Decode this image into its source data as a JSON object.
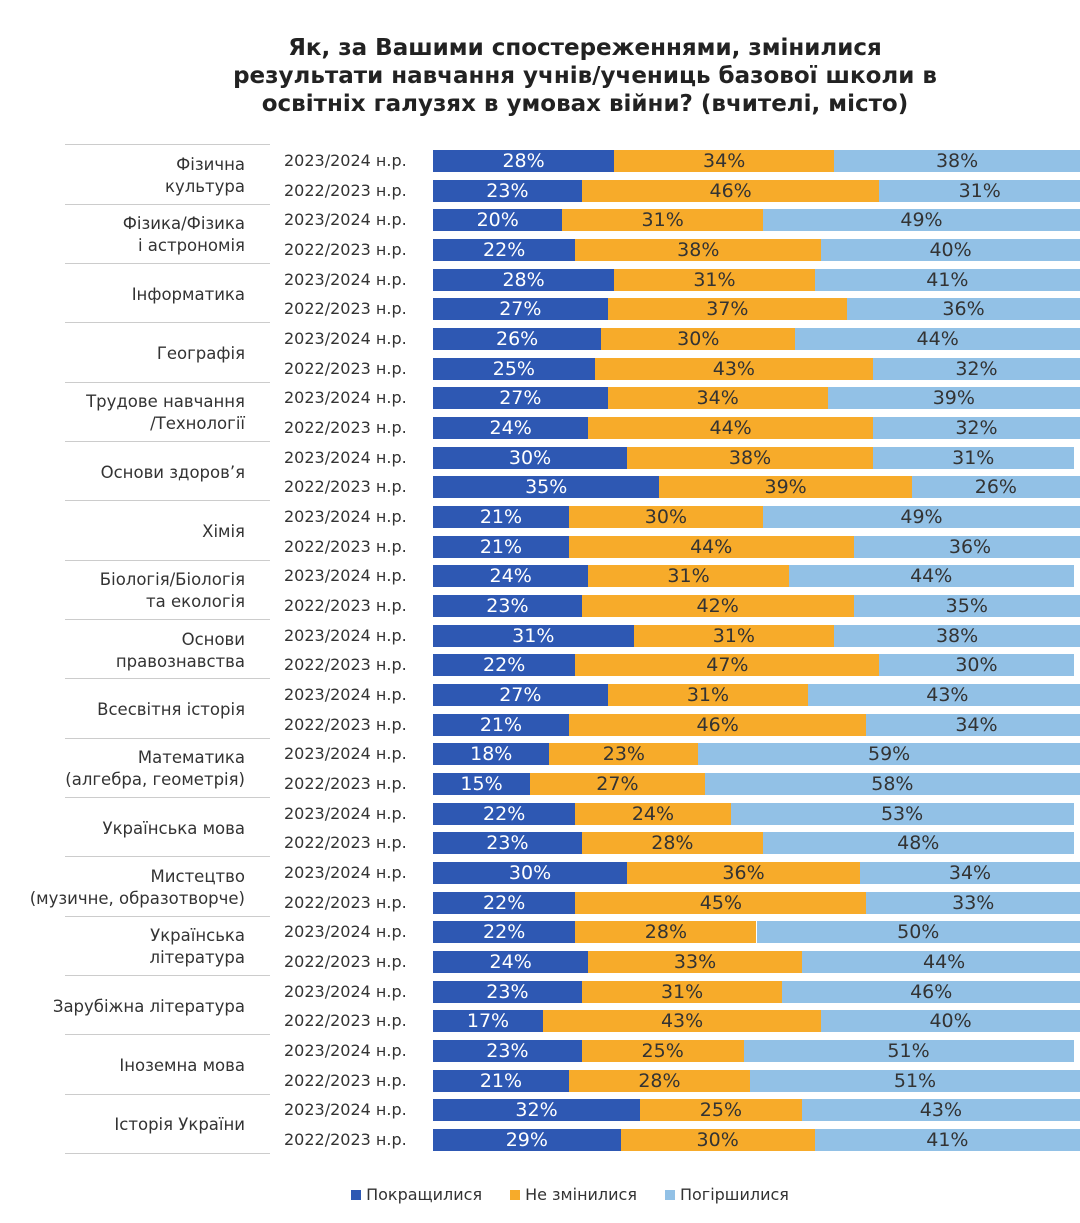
{
  "chart_data": {
    "type": "stacked-bar",
    "title": "Як, за Вашими спостереженнями, змінилися\nрезультати навчання учнів/учениць базової школи в\nосвітніх галузях в умовах війни? (вчителі, місто)",
    "groups": [
      "Фізична\nкультура",
      "Фізика/Фізика\nі астрономія",
      "Інформатика",
      "Географія",
      "Трудове навчання\n/Технології",
      "Основи здоров’я",
      "Хімія",
      "Біологія/Біологія\nта екологія",
      "Основи\nправознавства",
      "Всесвітня історія",
      "Математика\n(алгебра, геометрія)",
      "Українська мова",
      "Мистецтво\n(музичне, образотворче)",
      "Українська\nлітература",
      "Зарубіжна література",
      "Іноземна мова",
      "Історія України"
    ],
    "categories": [
      "2023/2024 н.р.",
      "2022/2023 н.р.",
      "2023/2024 н.р.",
      "2022/2023 н.р.",
      "2023/2024 н.р.",
      "2022/2023 н.р.",
      "2023/2024 н.р.",
      "2022/2023 н.р.",
      "2023/2024 н.р.",
      "2022/2023 н.р.",
      "2023/2024 н.р.",
      "2022/2023 н.р.",
      "2023/2024 н.р.",
      "2022/2023 н.р.",
      "2023/2024 н.р.",
      "2022/2023 н.р.",
      "2023/2024 н.р.",
      "2022/2023 н.р.",
      "2023/2024 н.р.",
      "2022/2023 н.р.",
      "2023/2024 н.р.",
      "2022/2023 н.р.",
      "2023/2024 н.р.",
      "2022/2023 н.р.",
      "2023/2024 н.р.",
      "2022/2023 н.р.",
      "2023/2024 н.р.",
      "2022/2023 н.р.",
      "2023/2024 н.р.",
      "2022/2023 н.р.",
      "2023/2024 н.р.",
      "2022/2023 н.р.",
      "2023/2024 н.р.",
      "2022/2023 н.р."
    ],
    "xlim": [
      0,
      100
    ],
    "series": [
      {
        "name": "Покращилися",
        "color": "#2e58b3",
        "values": [
          28,
          23,
          20,
          22,
          28,
          27,
          26,
          25,
          27,
          24,
          30,
          35,
          21,
          21,
          24,
          23,
          31,
          22,
          27,
          21,
          18,
          15,
          22,
          23,
          30,
          22,
          22,
          24,
          23,
          17,
          23,
          21,
          32,
          29
        ],
        "value_labels": [
          "28%",
          "23%",
          "20%",
          "22%",
          "28%",
          "27%",
          "26%",
          "25%",
          "27%",
          "24%",
          "30%",
          "35%",
          "21%",
          "21%",
          "24%",
          "23%",
          "31%",
          "22%",
          "27%",
          "21%",
          "18%",
          "15%",
          "22%",
          "23%",
          "30%",
          "22%",
          "22%",
          "24%",
          "23%",
          "17%",
          "23%",
          "21%",
          "32%",
          "29%"
        ]
      },
      {
        "name": "Не змінилися",
        "color": "#f7ab2a",
        "values": [
          34,
          46,
          31,
          38,
          31,
          37,
          30,
          43,
          34,
          44,
          38,
          39,
          30,
          44,
          31,
          42,
          31,
          47,
          31,
          46,
          23,
          27,
          24,
          28,
          36,
          45,
          28,
          33,
          31,
          43,
          25,
          28,
          25,
          30
        ],
        "value_labels": [
          "34%",
          "46%",
          "31%",
          "38%",
          "31%",
          "37%",
          "30%",
          "43%",
          "34%",
          "44%",
          "38%",
          "39%",
          "30%",
          "44%",
          "31%",
          "42%",
          "31%",
          "47%",
          "31%",
          "46%",
          "23%",
          "27%",
          "24%",
          "28%",
          "36%",
          "45%",
          "28%",
          "33%",
          "31%",
          "43%",
          "25%",
          "28%",
          "25%",
          "30%"
        ]
      },
      {
        "name": "Погіршилися",
        "color": "#92c1e6",
        "values": [
          38,
          31,
          49,
          40,
          41,
          36,
          44,
          32,
          39,
          32,
          31,
          26,
          49,
          36,
          44,
          35,
          38,
          30,
          43,
          34,
          59,
          58,
          53,
          48,
          34,
          33,
          50,
          44,
          46,
          40,
          51,
          51,
          43,
          41
        ],
        "value_labels": [
          "38%",
          "31%",
          "49%",
          "40%",
          "41%",
          "36%",
          "44%",
          "32%",
          "39%",
          "32%",
          "31%",
          "26%",
          "49%",
          "36%",
          "44%",
          "35%",
          "38%",
          "30%",
          "43%",
          "34%",
          "59%",
          "58%",
          "53%",
          "48%",
          "34%",
          "33%",
          "50%",
          "44%",
          "46%",
          "40%",
          "51%",
          "51%",
          "43%",
          "41%"
        ]
      }
    ]
  }
}
